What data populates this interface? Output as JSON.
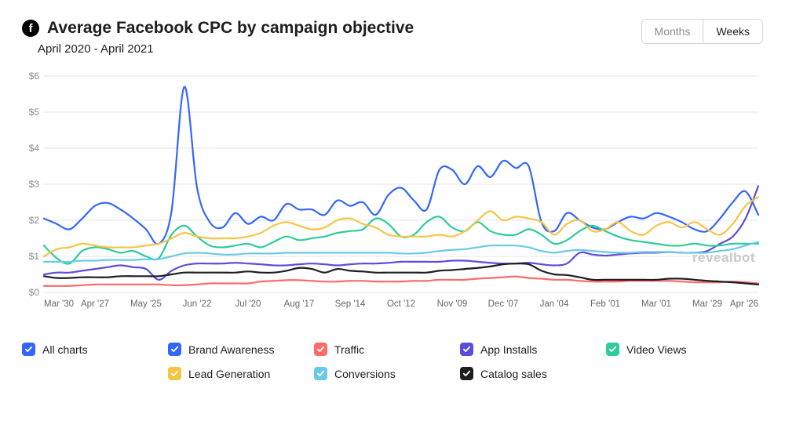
{
  "header": {
    "title": "Average Facebook CPC by campaign objective",
    "subtitle": "April 2020 - April 2021",
    "icon_letter": "f"
  },
  "toggle": {
    "months_label": "Months",
    "weeks_label": "Weeks",
    "active": "weeks"
  },
  "watermark": "revealbot",
  "chart": {
    "type": "line",
    "background_color": "#ffffff",
    "grid_color": "#e4e6eb",
    "tick_label_color": "#8a8d91",
    "x_tick_label_color": "#65676b",
    "tick_fontsize": 12,
    "x_tick_fontsize": 11.5,
    "line_width": 2.2,
    "ylim": [
      0,
      6
    ],
    "yticks": [
      0,
      1,
      2,
      3,
      4,
      5,
      6
    ],
    "ytick_labels": [
      "$0",
      "$1",
      "$2",
      "$3",
      "$4",
      "$5",
      "$6"
    ],
    "xtick_labels": [
      "Mar '30",
      "Apr '27",
      "May '25",
      "Jun '22",
      "Jul '20",
      "Aug '17",
      "Sep '14",
      "Oct '12",
      "Nov '09",
      "Dec '07",
      "Jan '04",
      "Feb '01",
      "Mar '01",
      "Mar '29",
      "Apr '26"
    ],
    "x_count": 57,
    "series": [
      {
        "name": "Brand Awareness",
        "color": "#3366ff",
        "values": [
          2.05,
          1.9,
          1.75,
          2.05,
          2.4,
          2.48,
          2.3,
          2.05,
          1.75,
          1.35,
          2.25,
          5.7,
          2.9,
          1.95,
          1.8,
          2.2,
          1.9,
          2.1,
          2.0,
          2.45,
          2.3,
          2.3,
          2.15,
          2.55,
          2.4,
          2.5,
          2.15,
          2.7,
          2.9,
          2.55,
          2.3,
          3.4,
          3.4,
          3.0,
          3.5,
          3.2,
          3.65,
          3.45,
          3.5,
          1.95,
          1.7,
          2.2,
          2.0,
          1.8,
          1.75,
          1.95,
          2.1,
          2.05,
          2.2,
          2.1,
          1.95,
          1.75,
          1.7,
          2.05,
          2.5,
          2.8,
          2.15
        ]
      },
      {
        "name": "Traffic",
        "color": "#ff6b6b",
        "values": [
          0.18,
          0.18,
          0.18,
          0.2,
          0.22,
          0.22,
          0.22,
          0.22,
          0.22,
          0.22,
          0.2,
          0.2,
          0.22,
          0.25,
          0.25,
          0.25,
          0.25,
          0.3,
          0.32,
          0.34,
          0.34,
          0.32,
          0.3,
          0.3,
          0.32,
          0.32,
          0.3,
          0.3,
          0.3,
          0.32,
          0.32,
          0.35,
          0.35,
          0.35,
          0.38,
          0.4,
          0.42,
          0.44,
          0.4,
          0.38,
          0.35,
          0.35,
          0.32,
          0.3,
          0.3,
          0.3,
          0.32,
          0.32,
          0.32,
          0.32,
          0.3,
          0.28,
          0.28,
          0.28,
          0.3,
          0.28,
          0.25
        ]
      },
      {
        "name": "App Installs",
        "color": "#5b4ddb",
        "values": [
          0.5,
          0.55,
          0.55,
          0.6,
          0.65,
          0.7,
          0.75,
          0.7,
          0.65,
          0.35,
          0.6,
          0.75,
          0.8,
          0.8,
          0.8,
          0.82,
          0.8,
          0.78,
          0.75,
          0.75,
          0.78,
          0.8,
          0.78,
          0.75,
          0.78,
          0.8,
          0.8,
          0.82,
          0.85,
          0.85,
          0.85,
          0.85,
          0.88,
          0.88,
          0.85,
          0.82,
          0.8,
          0.8,
          0.82,
          0.78,
          0.75,
          0.8,
          1.1,
          1.05,
          1.02,
          1.05,
          1.08,
          1.1,
          1.1,
          1.12,
          1.1,
          1.1,
          1.15,
          1.35,
          1.55,
          2.05,
          2.95
        ]
      },
      {
        "name": "Video Views",
        "color": "#2ecc9a",
        "values": [
          1.3,
          0.95,
          0.8,
          1.15,
          1.25,
          1.2,
          1.1,
          1.15,
          1.0,
          0.95,
          1.6,
          1.85,
          1.55,
          1.3,
          1.25,
          1.3,
          1.35,
          1.25,
          1.4,
          1.55,
          1.45,
          1.5,
          1.55,
          1.65,
          1.7,
          1.75,
          2.05,
          1.9,
          1.55,
          1.6,
          1.95,
          2.1,
          1.8,
          1.7,
          1.95,
          1.7,
          1.6,
          1.6,
          1.75,
          1.6,
          1.35,
          1.45,
          1.7,
          1.85,
          1.7,
          1.55,
          1.45,
          1.4,
          1.35,
          1.3,
          1.3,
          1.35,
          1.3,
          1.3,
          1.35,
          1.35,
          1.35
        ]
      },
      {
        "name": "Lead Generation",
        "color": "#f6c445",
        "values": [
          1.0,
          1.2,
          1.25,
          1.35,
          1.3,
          1.25,
          1.25,
          1.25,
          1.3,
          1.35,
          1.5,
          1.65,
          1.55,
          1.5,
          1.5,
          1.5,
          1.55,
          1.65,
          1.85,
          1.95,
          1.85,
          1.75,
          1.8,
          2.0,
          2.05,
          1.9,
          1.8,
          1.6,
          1.55,
          1.55,
          1.55,
          1.6,
          1.55,
          1.7,
          2.0,
          2.25,
          2.0,
          2.1,
          2.05,
          1.95,
          1.6,
          1.9,
          2.0,
          1.7,
          1.75,
          1.95,
          1.7,
          1.6,
          1.85,
          1.95,
          1.8,
          1.95,
          1.75,
          1.6,
          1.9,
          2.4,
          2.65
        ]
      },
      {
        "name": "Conversions",
        "color": "#6bc9e8",
        "values": [
          0.85,
          0.85,
          0.85,
          0.88,
          0.88,
          0.9,
          0.9,
          0.9,
          0.92,
          0.92,
          1.0,
          1.08,
          1.1,
          1.08,
          1.05,
          1.05,
          1.08,
          1.08,
          1.08,
          1.1,
          1.1,
          1.1,
          1.1,
          1.1,
          1.1,
          1.1,
          1.1,
          1.1,
          1.08,
          1.08,
          1.1,
          1.15,
          1.18,
          1.2,
          1.25,
          1.3,
          1.3,
          1.3,
          1.25,
          1.15,
          1.1,
          1.15,
          1.18,
          1.15,
          1.12,
          1.1,
          1.1,
          1.12,
          1.12,
          1.12,
          1.1,
          1.1,
          1.1,
          1.15,
          1.2,
          1.3,
          1.4
        ]
      },
      {
        "name": "Catalog sales",
        "color": "#1c1e21",
        "values": [
          0.45,
          0.4,
          0.4,
          0.42,
          0.42,
          0.42,
          0.45,
          0.45,
          0.45,
          0.45,
          0.5,
          0.55,
          0.55,
          0.55,
          0.55,
          0.55,
          0.58,
          0.55,
          0.55,
          0.6,
          0.68,
          0.65,
          0.55,
          0.65,
          0.6,
          0.58,
          0.55,
          0.55,
          0.55,
          0.55,
          0.55,
          0.6,
          0.62,
          0.65,
          0.68,
          0.72,
          0.78,
          0.8,
          0.78,
          0.6,
          0.5,
          0.48,
          0.42,
          0.35,
          0.35,
          0.35,
          0.35,
          0.35,
          0.35,
          0.38,
          0.38,
          0.35,
          0.32,
          0.3,
          0.28,
          0.25,
          0.22
        ]
      }
    ]
  },
  "legend": [
    {
      "label": "All charts",
      "color": "#3366ff"
    },
    {
      "label": "Brand Awareness",
      "color": "#3366ff"
    },
    {
      "label": "Traffic",
      "color": "#ff6b6b"
    },
    {
      "label": "App Installs",
      "color": "#5b4ddb"
    },
    {
      "label": "Video Views",
      "color": "#2ecc9a"
    },
    {
      "label": "Lead Generation",
      "color": "#f6c445"
    },
    {
      "label": "Conversions",
      "color": "#6bc9e8"
    },
    {
      "label": "Catalog sales",
      "color": "#1c1e21"
    }
  ]
}
